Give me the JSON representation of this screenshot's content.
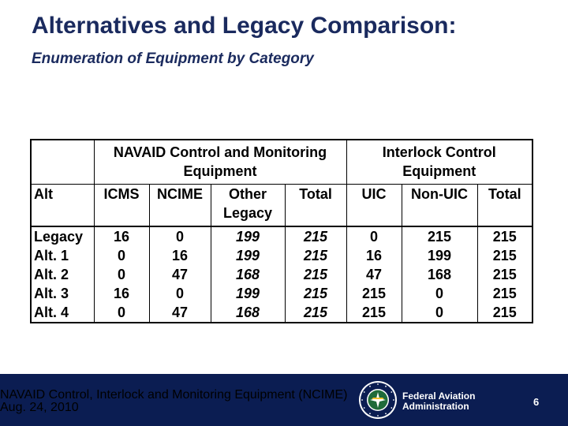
{
  "slide": {
    "title": "Alternatives and Legacy Comparison:",
    "subtitle": "Enumeration of Equipment by Category"
  },
  "table": {
    "group_navaid": "NAVAID Control and Monitoring Equipment",
    "group_interlock": "Interlock Control Equipment",
    "headers": [
      "Alt",
      "ICMS",
      "NCIME",
      "Other Legacy",
      "Total",
      "UIC",
      "Non-UIC",
      "Total"
    ],
    "rows": [
      [
        "Legacy",
        "16",
        "0",
        "199",
        "215",
        "0",
        "215",
        "215"
      ],
      [
        "Alt. 1",
        "0",
        "16",
        "199",
        "215",
        "16",
        "199",
        "215"
      ],
      [
        "Alt. 2",
        "0",
        "47",
        "168",
        "215",
        "47",
        "168",
        "215"
      ],
      [
        "Alt. 3",
        "16",
        "0",
        "199",
        "215",
        "215",
        "0",
        "215"
      ],
      [
        "Alt. 4",
        "0",
        "47",
        "168",
        "215",
        "215",
        "0",
        "215"
      ]
    ]
  },
  "footer": {
    "source": "NAVAID Control, Interlock and Monitoring Equipment (NCIME)",
    "date": "Aug. 24, 2010",
    "agency_line1": "Federal Aviation",
    "agency_line2": "Administration",
    "page": "6",
    "seal_text": "FEDERAL AVIATION ADMINISTRATION"
  }
}
